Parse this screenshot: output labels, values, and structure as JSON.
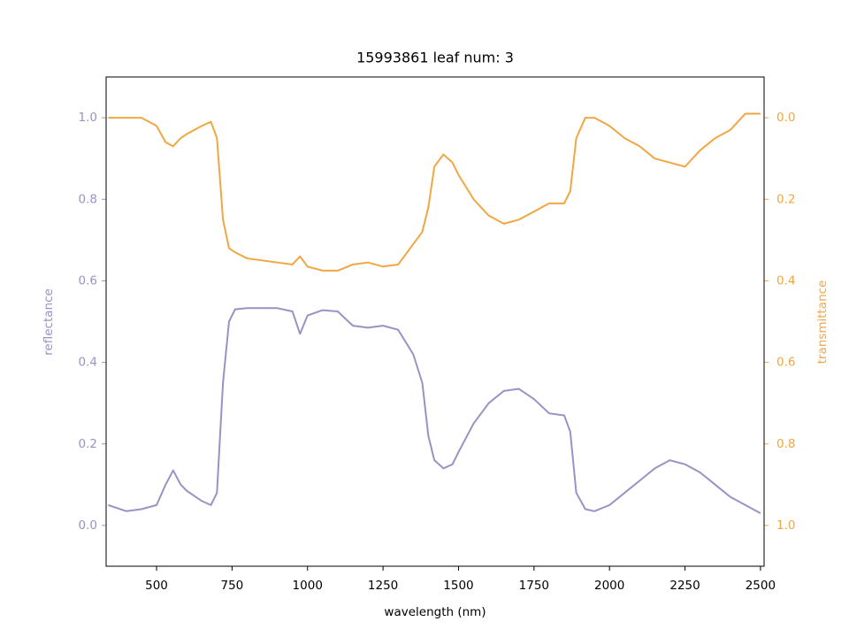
{
  "chart_data": {
    "type": "line",
    "title": "15993861 leaf num: 3",
    "x_label": "wavelength (nm)",
    "y_label": "reflectance",
    "y2_label": "transmittance",
    "x": [
      340,
      400,
      450,
      500,
      530,
      555,
      580,
      600,
      650,
      680,
      700,
      720,
      740,
      760,
      800,
      900,
      950,
      975,
      1000,
      1050,
      1100,
      1150,
      1200,
      1250,
      1300,
      1350,
      1380,
      1400,
      1420,
      1450,
      1480,
      1500,
      1550,
      1600,
      1650,
      1700,
      1750,
      1800,
      1850,
      1870,
      1890,
      1920,
      1950,
      2000,
      2050,
      2100,
      2150,
      2200,
      2250,
      2300,
      2350,
      2400,
      2450,
      2500
    ],
    "series": [
      {
        "color": "#9793c4",
        "axis": "y",
        "values": [
          0.05,
          0.035,
          0.04,
          0.05,
          0.1,
          0.135,
          0.1,
          0.085,
          0.06,
          0.05,
          0.08,
          0.35,
          0.5,
          0.53,
          0.533,
          0.533,
          0.525,
          0.47,
          0.515,
          0.528,
          0.525,
          0.49,
          0.485,
          0.49,
          0.48,
          0.42,
          0.35,
          0.22,
          0.16,
          0.14,
          0.15,
          0.18,
          0.25,
          0.3,
          0.33,
          0.335,
          0.31,
          0.275,
          0.27,
          0.23,
          0.08,
          0.04,
          0.035,
          0.05,
          0.08,
          0.11,
          0.14,
          0.16,
          0.15,
          0.13,
          0.1,
          0.07,
          0.05,
          0.03
        ]
      },
      {
        "color": "#f0a742",
        "axis": "y2",
        "values": [
          0.0,
          0.0,
          0.0,
          0.02,
          0.06,
          0.07,
          0.05,
          0.04,
          0.02,
          0.01,
          0.05,
          0.25,
          0.32,
          0.33,
          0.345,
          0.355,
          0.36,
          0.34,
          0.365,
          0.375,
          0.375,
          0.36,
          0.355,
          0.365,
          0.36,
          0.31,
          0.28,
          0.22,
          0.12,
          0.09,
          0.11,
          0.14,
          0.2,
          0.24,
          0.26,
          0.25,
          0.23,
          0.21,
          0.21,
          0.18,
          0.05,
          0.0,
          0.0,
          0.02,
          0.05,
          0.07,
          0.1,
          0.11,
          0.12,
          0.08,
          0.05,
          0.03,
          -0.01,
          -0.01
        ]
      }
    ],
    "xlim": [
      333,
      2512
    ],
    "xticks": [
      500,
      750,
      1000,
      1250,
      1500,
      1750,
      2000,
      2250,
      2500
    ],
    "ylim": [
      -0.1,
      1.1
    ],
    "yticks": [
      {
        "value": 0,
        "label": "0.0"
      },
      {
        "value": 0.2,
        "label": "0.2"
      },
      {
        "value": 0.4,
        "label": "0.4"
      },
      {
        "value": 0.6,
        "label": "0.6"
      },
      {
        "value": 0.8,
        "label": "0.8"
      },
      {
        "value": 1,
        "label": "1.0"
      }
    ],
    "y2lim": [
      1.1,
      -0.1
    ],
    "y2ticks": [
      {
        "value": 0,
        "label": "0.0"
      },
      {
        "value": 0.2,
        "label": "0.2"
      },
      {
        "value": 0.4,
        "label": "0.4"
      },
      {
        "value": 0.6,
        "label": "0.6"
      },
      {
        "value": 0.8,
        "label": "0.8"
      },
      {
        "value": 1,
        "label": "1.0"
      }
    ]
  }
}
